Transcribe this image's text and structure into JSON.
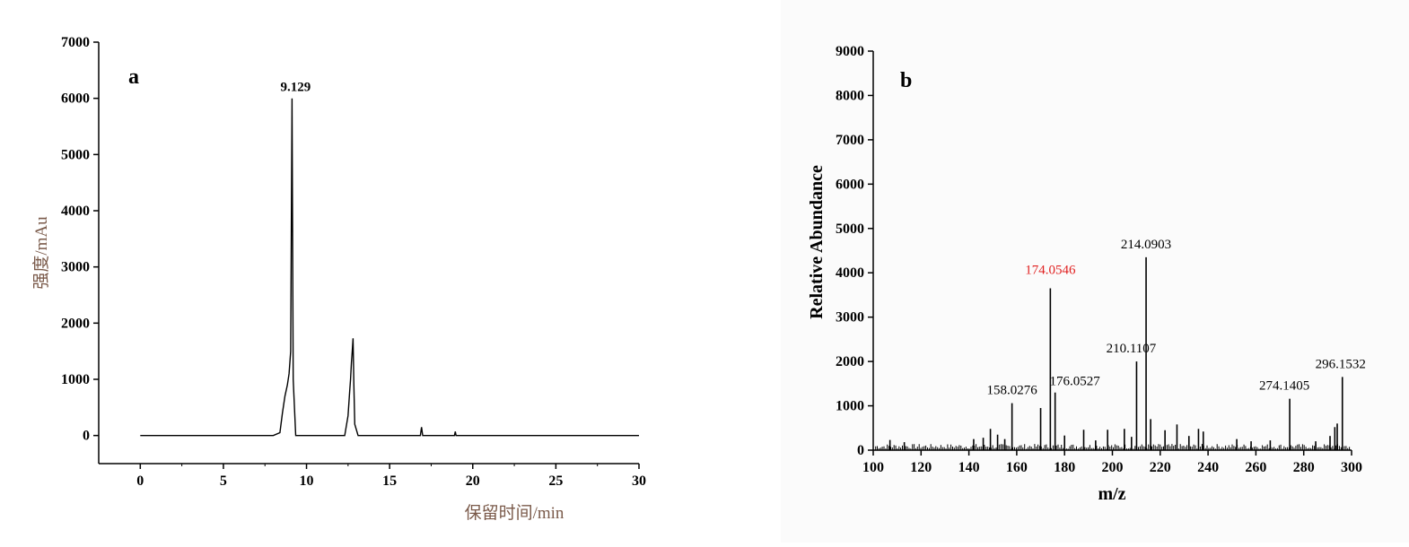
{
  "chart_data": [
    {
      "type": "line",
      "panel_label": "a",
      "xlabel": "保留时间/min",
      "ylabel": "强度/mAu",
      "xlim": [
        -2.5,
        30
      ],
      "ylim": [
        -500,
        7000
      ],
      "xticks": [
        0,
        5,
        10,
        15,
        20,
        25,
        30
      ],
      "yticks": [
        0,
        1000,
        2000,
        3000,
        4000,
        5000,
        6000,
        7000
      ],
      "annotations": [
        {
          "text": "9.129",
          "x": 9.129,
          "y": 6000
        }
      ],
      "series": [
        {
          "x": [
            0,
            8.0,
            8.4,
            8.55,
            8.7,
            8.85,
            8.95,
            9.05,
            9.129,
            9.2,
            9.35,
            9.6,
            12.3,
            12.5,
            12.6,
            12.65,
            12.7,
            12.75,
            12.8,
            12.85,
            12.9,
            13.1,
            16.85,
            16.92,
            16.99,
            18.9,
            18.95,
            19.0,
            30
          ],
          "y": [
            0,
            0,
            50,
            400,
            700,
            900,
            1100,
            1500,
            6000,
            1000,
            0,
            0,
            0,
            350,
            800,
            1000,
            1300,
            1500,
            1730,
            900,
            200,
            0,
            0,
            150,
            0,
            0,
            70,
            0,
            0
          ]
        }
      ]
    },
    {
      "type": "bar",
      "panel_label": "b",
      "xlabel": "m/z",
      "ylabel": "Relative Abundance",
      "xlim": [
        100,
        300
      ],
      "ylim": [
        0,
        9000
      ],
      "xticks": [
        100,
        120,
        140,
        160,
        180,
        200,
        220,
        240,
        260,
        280,
        300
      ],
      "yticks": [
        0,
        1000,
        2000,
        3000,
        4000,
        5000,
        6000,
        7000,
        8000,
        9000
      ],
      "highlight_color": "#e02020",
      "peaks": [
        {
          "mz": 158.0276,
          "abundance": 1060,
          "label": "158.0276",
          "highlight": false
        },
        {
          "mz": 170.0,
          "abundance": 950,
          "label": "",
          "highlight": false
        },
        {
          "mz": 174.0546,
          "abundance": 3650,
          "label": "174.0546",
          "highlight": true
        },
        {
          "mz": 176.0527,
          "abundance": 1300,
          "label": "176.0527",
          "highlight": false
        },
        {
          "mz": 210.1107,
          "abundance": 2000,
          "label": "210.1107",
          "highlight": false
        },
        {
          "mz": 214.0903,
          "abundance": 4350,
          "label": "214.0903",
          "highlight": false
        },
        {
          "mz": 274.1405,
          "abundance": 1160,
          "label": "274.1405",
          "highlight": false
        },
        {
          "mz": 296.1532,
          "abundance": 1650,
          "label": "296.1532",
          "highlight": false
        },
        {
          "mz": 107,
          "abundance": 230,
          "label": "",
          "highlight": false
        },
        {
          "mz": 113,
          "abundance": 180,
          "label": "",
          "highlight": false
        },
        {
          "mz": 142,
          "abundance": 250,
          "label": "",
          "highlight": false
        },
        {
          "mz": 146,
          "abundance": 280,
          "label": "",
          "highlight": false
        },
        {
          "mz": 149,
          "abundance": 480,
          "label": "",
          "highlight": false
        },
        {
          "mz": 152,
          "abundance": 350,
          "label": "",
          "highlight": false
        },
        {
          "mz": 155,
          "abundance": 250,
          "label": "",
          "highlight": false
        },
        {
          "mz": 180,
          "abundance": 330,
          "label": "",
          "highlight": false
        },
        {
          "mz": 188,
          "abundance": 460,
          "label": "",
          "highlight": false
        },
        {
          "mz": 193,
          "abundance": 220,
          "label": "",
          "highlight": false
        },
        {
          "mz": 198,
          "abundance": 460,
          "label": "",
          "highlight": false
        },
        {
          "mz": 205,
          "abundance": 480,
          "label": "",
          "highlight": false
        },
        {
          "mz": 208,
          "abundance": 300,
          "label": "",
          "highlight": false
        },
        {
          "mz": 216,
          "abundance": 700,
          "label": "",
          "highlight": false
        },
        {
          "mz": 222,
          "abundance": 450,
          "label": "",
          "highlight": false
        },
        {
          "mz": 227,
          "abundance": 580,
          "label": "",
          "highlight": false
        },
        {
          "mz": 232,
          "abundance": 320,
          "label": "",
          "highlight": false
        },
        {
          "mz": 236,
          "abundance": 480,
          "label": "",
          "highlight": false
        },
        {
          "mz": 238,
          "abundance": 420,
          "label": "",
          "highlight": false
        },
        {
          "mz": 252,
          "abundance": 250,
          "label": "",
          "highlight": false
        },
        {
          "mz": 258,
          "abundance": 200,
          "label": "",
          "highlight": false
        },
        {
          "mz": 266,
          "abundance": 220,
          "label": "",
          "highlight": false
        },
        {
          "mz": 285,
          "abundance": 200,
          "label": "",
          "highlight": false
        },
        {
          "mz": 291,
          "abundance": 320,
          "label": "",
          "highlight": false
        },
        {
          "mz": 293,
          "abundance": 520,
          "label": "",
          "highlight": false
        },
        {
          "mz": 294,
          "abundance": 600,
          "label": "",
          "highlight": false
        }
      ]
    }
  ]
}
